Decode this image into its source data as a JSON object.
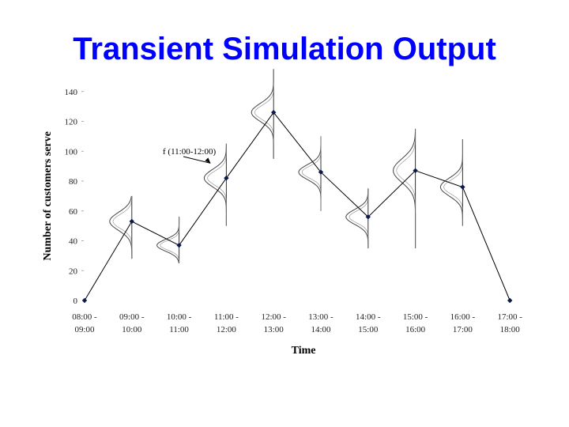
{
  "slide": {
    "title": "Transient Simulation Output"
  },
  "chart_data": {
    "type": "line",
    "title": "",
    "xlabel": "Time",
    "ylabel": "Number of customers serve",
    "ylim": [
      0,
      140
    ],
    "yticks": [
      0,
      20,
      40,
      60,
      80,
      100,
      120,
      140
    ],
    "categories": [
      [
        "08:00 -",
        "09:00"
      ],
      [
        "09:00 -",
        "10:00"
      ],
      [
        "10:00 -",
        "11:00"
      ],
      [
        "11:00 -",
        "12:00"
      ],
      [
        "12:00 -",
        "13:00"
      ],
      [
        "13:00 -",
        "14:00"
      ],
      [
        "14:00 -",
        "15:00"
      ],
      [
        "15:00 -",
        "16:00"
      ],
      [
        "16:00 -",
        "17:00"
      ],
      [
        "17:00 -",
        "18:00"
      ]
    ],
    "series": [
      {
        "values": [
          0,
          53,
          37,
          82,
          126,
          86,
          56,
          87,
          76,
          0
        ]
      }
    ],
    "distributions": [
      {
        "index": 1,
        "mean": 53,
        "low": 28,
        "high": 70,
        "spread": 6
      },
      {
        "index": 2,
        "mean": 37,
        "low": 25,
        "high": 56,
        "spread": 4
      },
      {
        "index": 3,
        "mean": 82,
        "low": 50,
        "high": 105,
        "spread": 6
      },
      {
        "index": 4,
        "mean": 126,
        "low": 95,
        "high": 155,
        "spread": 6
      },
      {
        "index": 5,
        "mean": 86,
        "low": 60,
        "high": 110,
        "spread": 5
      },
      {
        "index": 6,
        "mean": 56,
        "low": 35,
        "high": 75,
        "spread": 5
      },
      {
        "index": 7,
        "mean": 87,
        "low": 35,
        "high": 115,
        "spread": 8
      },
      {
        "index": 8,
        "mean": 76,
        "low": 50,
        "high": 108,
        "spread": 6
      }
    ],
    "annotation": {
      "text": "f (11:00-12:00)",
      "target_index": 3,
      "target_value": 82
    },
    "colors": {
      "line": "#000000",
      "marker": "#0b1a4a",
      "title": "#0000ff"
    }
  }
}
